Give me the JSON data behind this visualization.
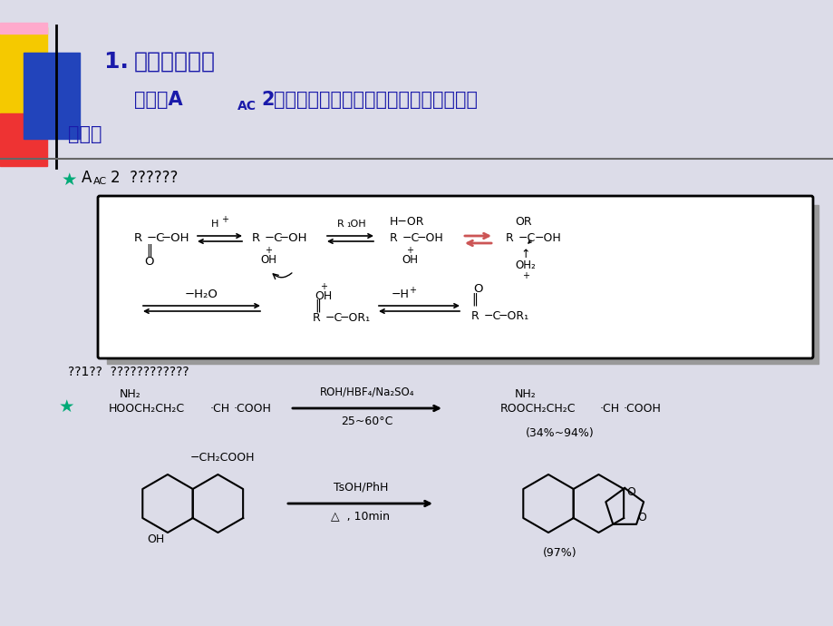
{
  "bg_color": "#dcdce8",
  "header_color": "#1a1aaa",
  "star_color": "#00aa77",
  "title1": "1. 羧酸为酰化剂",
  "reaction1_reagent": "ROH/HBF₄/Na₂SO₄",
  "reaction1_cond": "25~60°C",
  "reaction1_yield": "(34%~94%)",
  "reaction2_reagent": "TsOH/PhH",
  "reaction2_cond": "△  , 10min",
  "reaction2_yield": "(97%)"
}
